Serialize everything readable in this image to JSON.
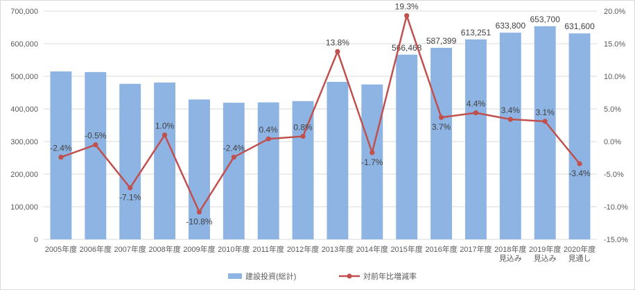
{
  "chart_data": {
    "type": "bar",
    "categories": [
      [
        "2005年度"
      ],
      [
        "2006年度"
      ],
      [
        "2007年度"
      ],
      [
        "2008年度"
      ],
      [
        "2009年度"
      ],
      [
        "2010年度"
      ],
      [
        "2011年度"
      ],
      [
        "2012年度"
      ],
      [
        "2013年度"
      ],
      [
        "2014年度"
      ],
      [
        "2015年度"
      ],
      [
        "2016年度"
      ],
      [
        "2017年度"
      ],
      [
        "2018年度",
        "見込み"
      ],
      [
        "2019年度",
        "見込み"
      ],
      [
        "2020年度",
        "見通し"
      ]
    ],
    "series": [
      {
        "name": "建設投資(総計)",
        "type": "bar",
        "axis": "left",
        "color": "#8eb4e3",
        "values": [
          515000,
          513000,
          477000,
          481000,
          429000,
          419000,
          420000,
          424000,
          483000,
          475000,
          566468,
          587399,
          613251,
          633800,
          653700,
          631600
        ],
        "labels": [
          "",
          "",
          "",
          "",
          "",
          "",
          "",
          "",
          "",
          "",
          "566,468",
          "587,399",
          "613,251",
          "633,800",
          "653,700",
          "631,600"
        ]
      },
      {
        "name": "対前年比増減率",
        "type": "line",
        "axis": "right",
        "color": "#c0504d",
        "values": [
          -2.4,
          -0.5,
          -7.1,
          1.0,
          -10.8,
          -2.4,
          0.4,
          0.8,
          13.8,
          -1.7,
          19.3,
          3.7,
          4.4,
          3.4,
          3.1,
          -3.4
        ],
        "labels": [
          "-2.4%",
          "-0.5%",
          "-7.1%",
          "1.0%",
          "-10.8%",
          "-2.4%",
          "0.4%",
          "0.8%",
          "13.8%",
          "-1.7%",
          "19.3%",
          "3.7%",
          "4.4%",
          "3.4%",
          "3.1%",
          "-3.4%"
        ]
      }
    ],
    "y_left": {
      "lim": [
        0,
        700000
      ],
      "ticks": [
        0,
        100000,
        200000,
        300000,
        400000,
        500000,
        600000,
        700000
      ],
      "tick_labels": [
        "0",
        "100,000",
        "200,000",
        "300,000",
        "400,000",
        "500,000",
        "600,000",
        "700,000"
      ]
    },
    "y_right": {
      "lim": [
        -15,
        20
      ],
      "ticks": [
        -15,
        -10,
        -5,
        0,
        5,
        10,
        15,
        20
      ],
      "tick_labels": [
        "-15.0%",
        "-10.0%",
        "-5.0%",
        "0.0%",
        "5.0%",
        "10.0%",
        "15.0%",
        "20.0%"
      ]
    },
    "grid": true,
    "legend": "bottom"
  }
}
